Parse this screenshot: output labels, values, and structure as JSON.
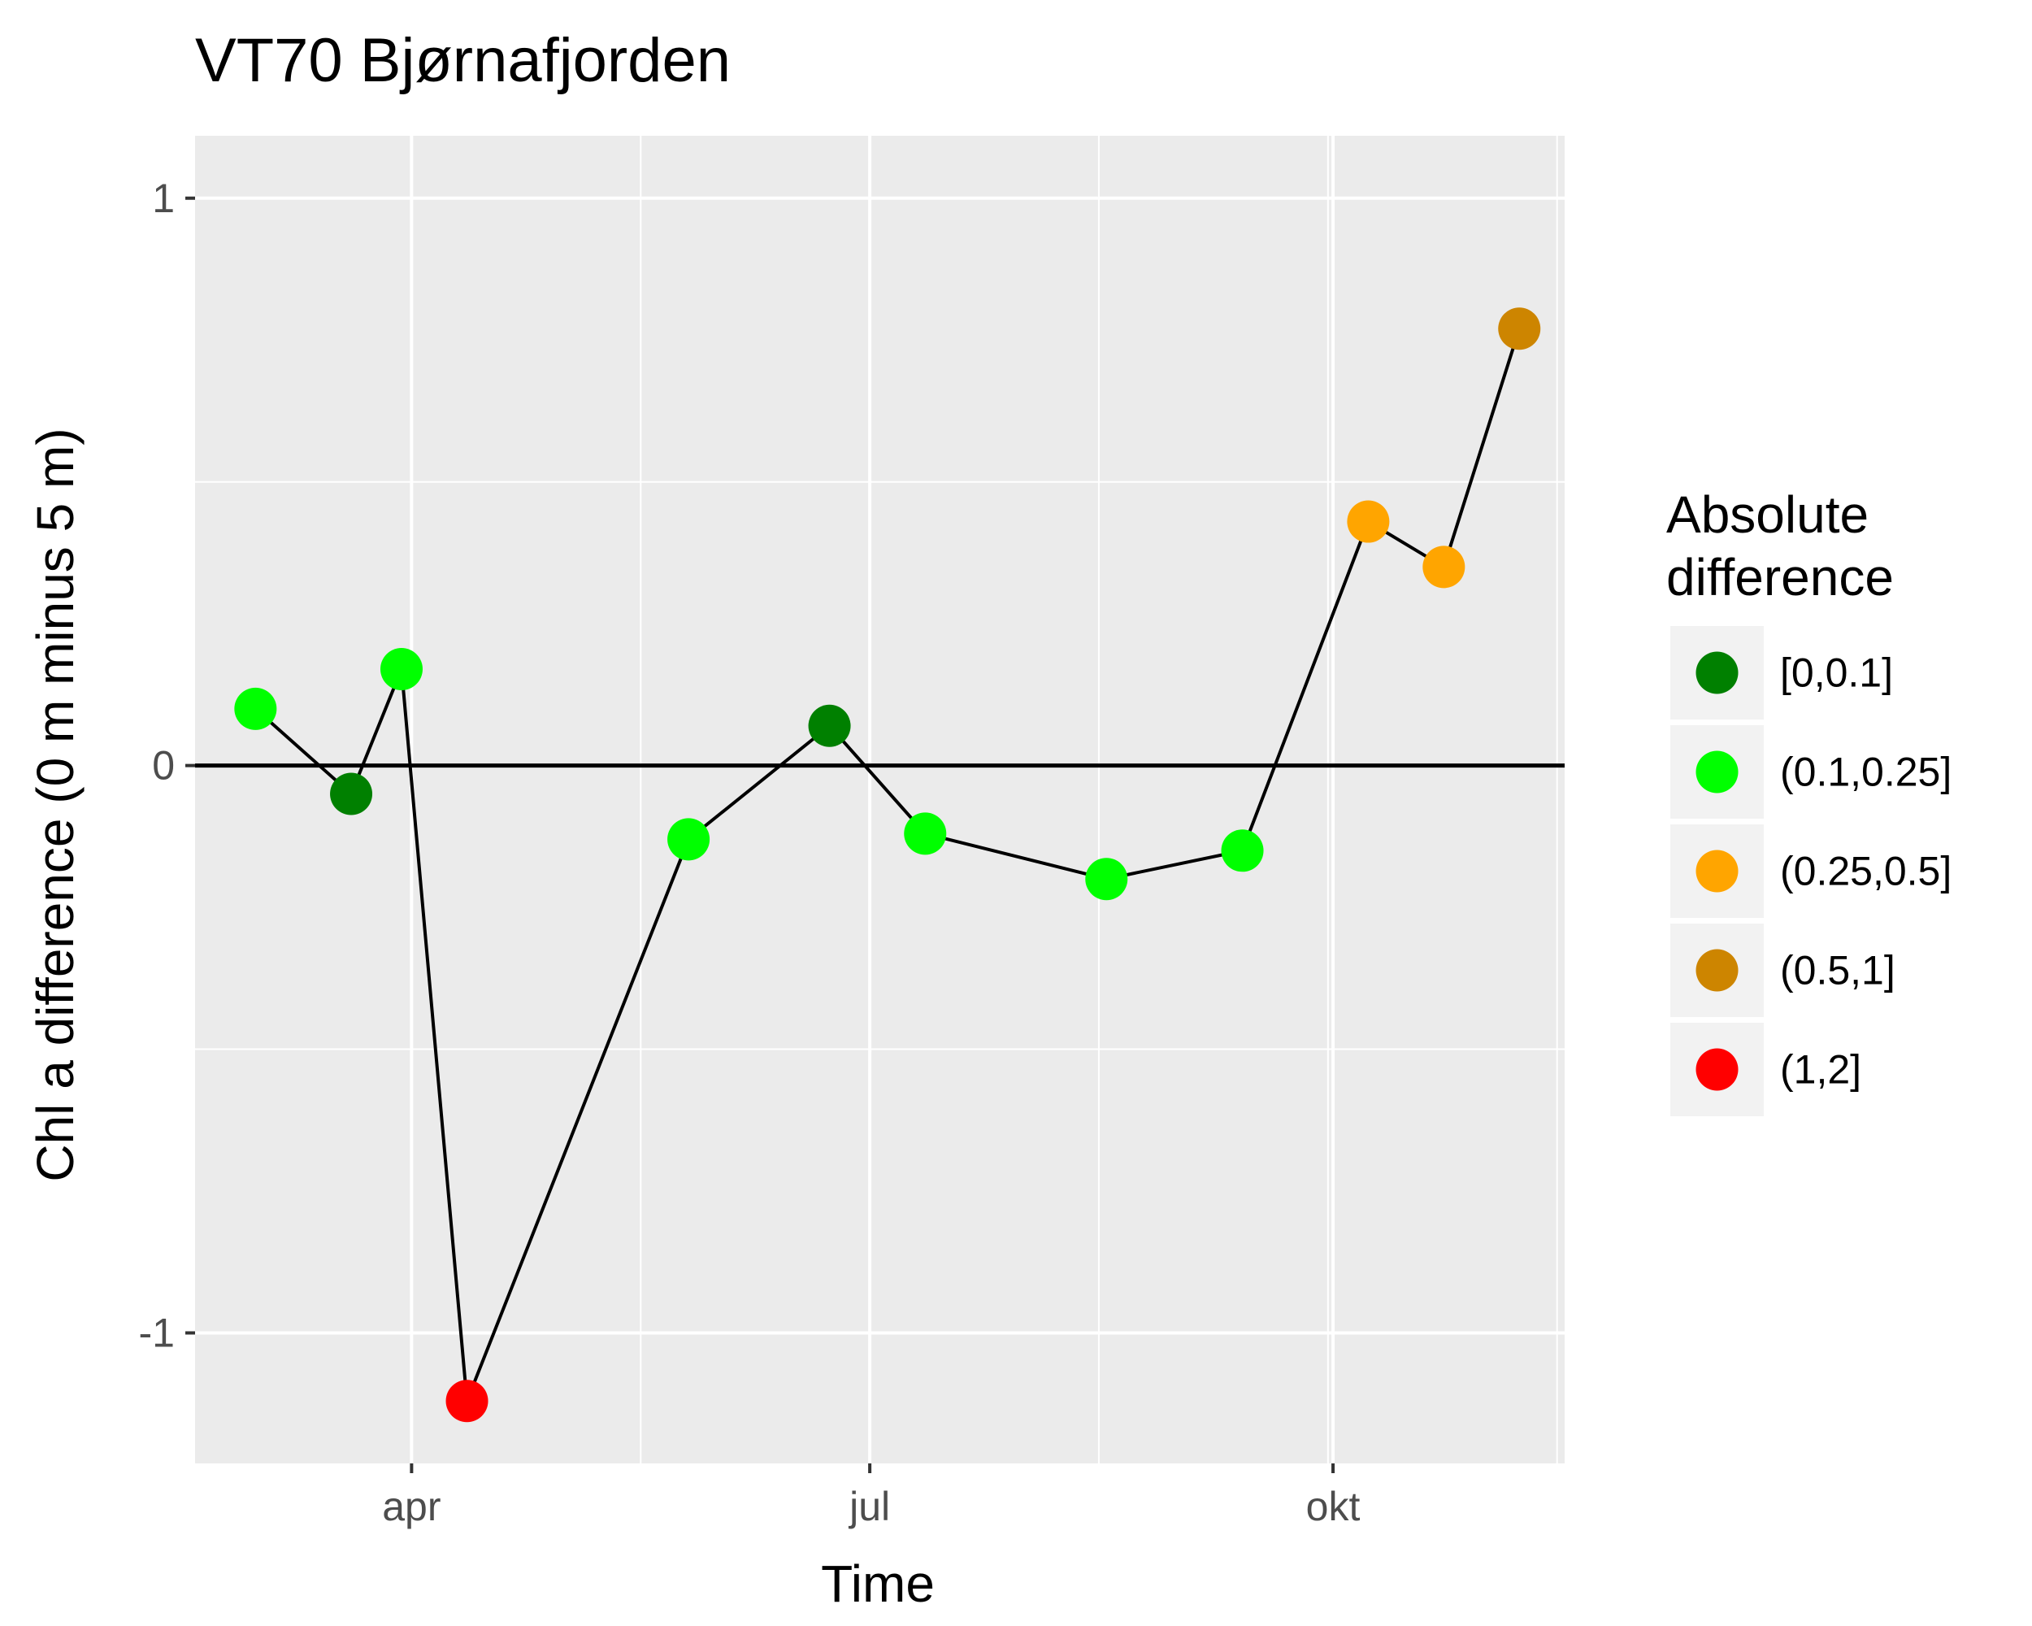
{
  "chart_data": {
    "type": "scatter",
    "title": "VT70 Bjørnafjorden",
    "xlabel": "Time",
    "ylabel": "Chl a difference (0 m minus 5 m)",
    "xlim": [
      "2017-02-17",
      "2017-11-16"
    ],
    "ylim": [
      -1.23,
      1.11
    ],
    "x_ticks": [
      {
        "label": "apr",
        "date": "2017-04-01"
      },
      {
        "label": "jul",
        "date": "2017-07-01"
      },
      {
        "label": "okt",
        "date": "2017-10-01"
      }
    ],
    "y_ticks": [
      {
        "label": "-1",
        "value": -1
      },
      {
        "label": "0",
        "value": 0
      },
      {
        "label": "1",
        "value": 1
      }
    ],
    "grid": true,
    "reference_line": 0,
    "connect_points": true,
    "legend": {
      "title_lines": [
        "Absolute",
        "difference"
      ],
      "placement": "right",
      "items": [
        {
          "label": "[0,0.1]",
          "color": "#008000"
        },
        {
          "label": "(0.1,0.25]",
          "color": "#00ff00"
        },
        {
          "label": "(0.25,0.5]",
          "color": "#ffa500"
        },
        {
          "label": "(0.5,1]",
          "color": "#cd8500"
        },
        {
          "label": "(1,2]",
          "color": "#ff0000"
        }
      ]
    },
    "points": [
      {
        "date": "2017-03-01",
        "y": 0.1,
        "class": 1
      },
      {
        "date": "2017-03-20",
        "y": -0.05,
        "class": 0
      },
      {
        "date": "2017-03-30",
        "y": 0.17,
        "class": 1
      },
      {
        "date": "2017-04-12",
        "y": -1.12,
        "class": 4
      },
      {
        "date": "2017-05-26",
        "y": -0.13,
        "class": 1
      },
      {
        "date": "2017-06-23",
        "y": 0.07,
        "class": 0
      },
      {
        "date": "2017-07-12",
        "y": -0.12,
        "class": 1
      },
      {
        "date": "2017-08-17",
        "y": -0.2,
        "class": 1
      },
      {
        "date": "2017-09-13",
        "y": -0.15,
        "class": 1
      },
      {
        "date": "2017-10-08",
        "y": 0.43,
        "class": 2
      },
      {
        "date": "2017-10-23",
        "y": 0.35,
        "class": 2
      },
      {
        "date": "2017-11-07",
        "y": 0.77,
        "class": 3
      }
    ]
  }
}
